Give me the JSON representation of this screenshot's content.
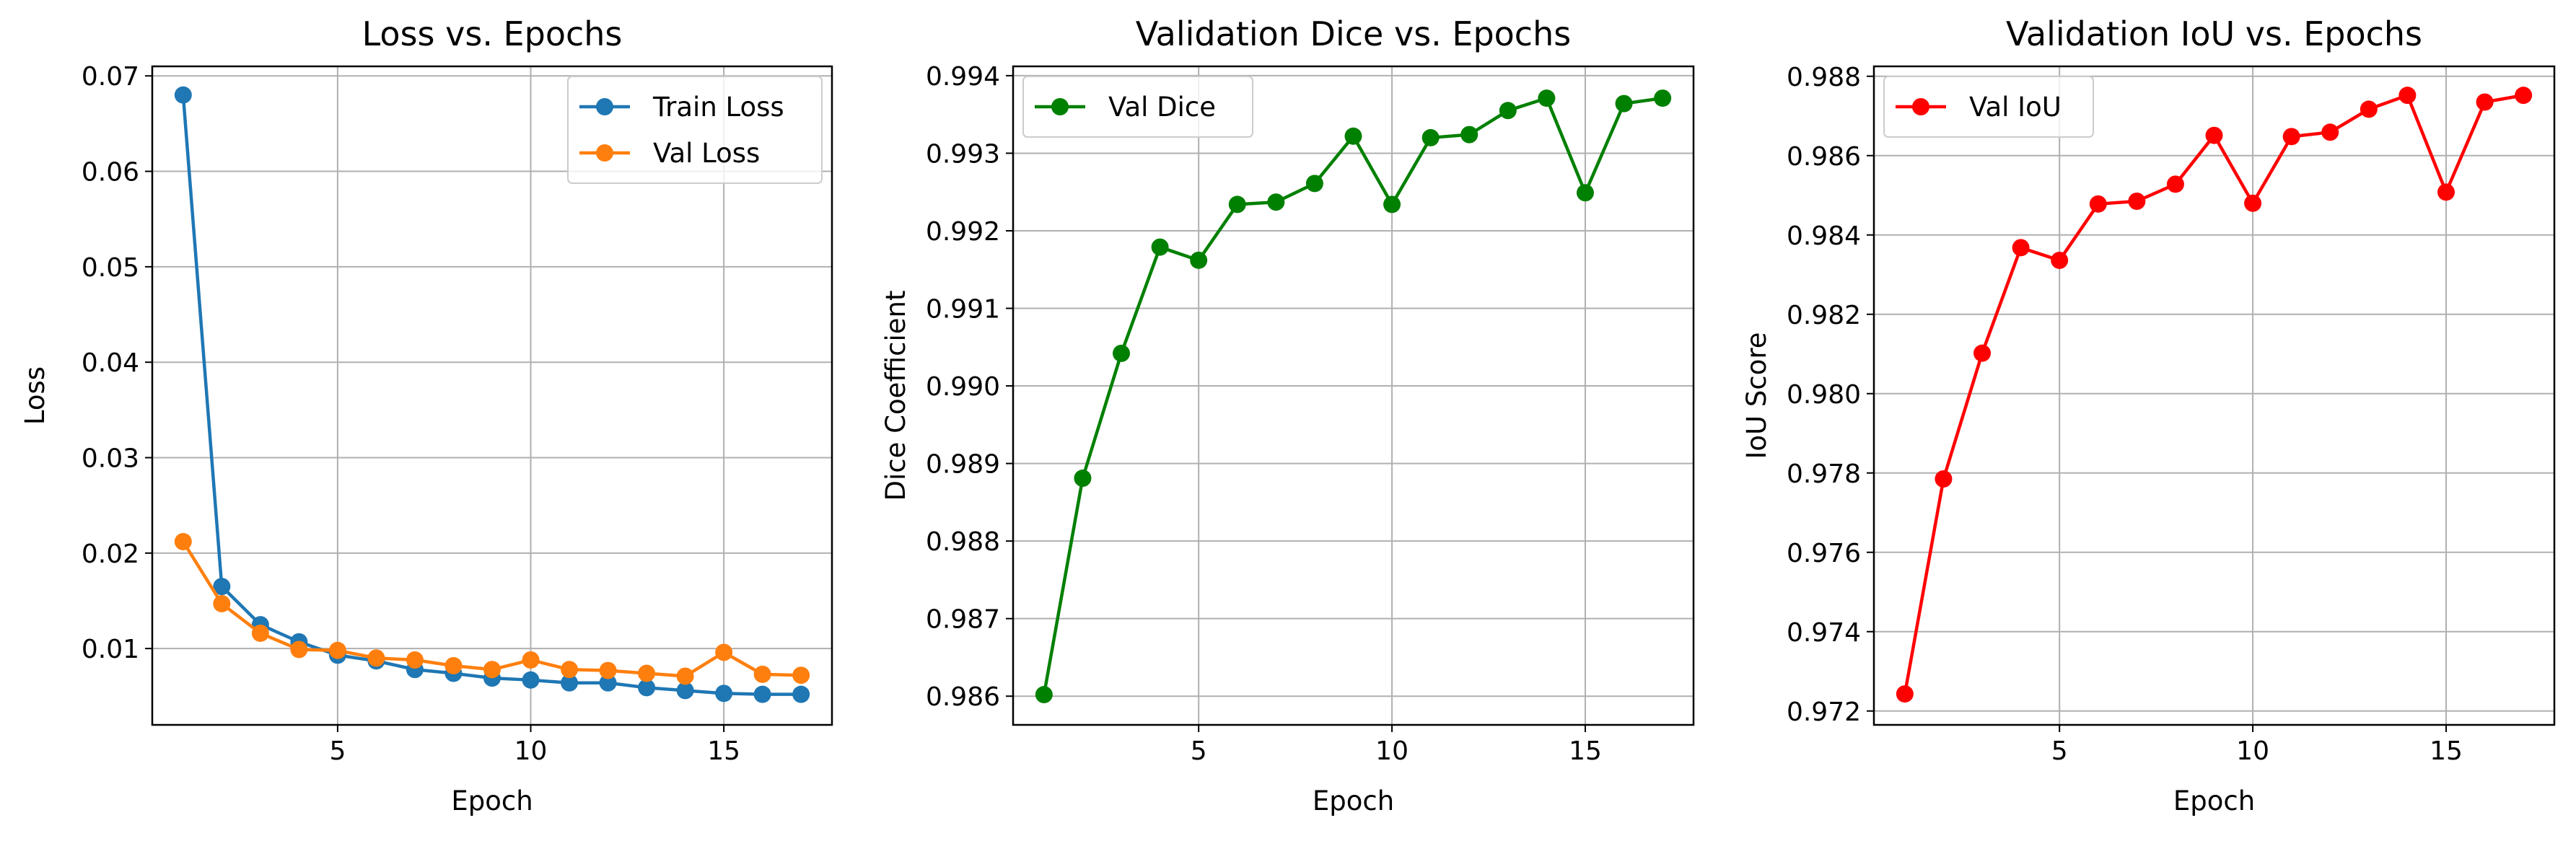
{
  "chart_data": [
    {
      "type": "line",
      "title": "Loss vs. Epochs",
      "xlabel": "Epoch",
      "ylabel": "Loss",
      "xlim": [
        0.2,
        17.8
      ],
      "ylim": [
        0.002,
        0.071
      ],
      "xticks": [
        5,
        10,
        15
      ],
      "yticks": [
        0.01,
        0.02,
        0.03,
        0.04,
        0.05,
        0.06,
        0.07
      ],
      "ytick_decimals": 2,
      "grid": true,
      "legend": "top-right",
      "x": [
        1,
        2,
        3,
        4,
        5,
        6,
        7,
        8,
        9,
        10,
        11,
        12,
        13,
        14,
        15,
        16,
        17
      ],
      "series": [
        {
          "name": "Train Loss",
          "color": "#1f77b4",
          "values": [
            0.068,
            0.0165,
            0.0125,
            0.0107,
            0.0093,
            0.0087,
            0.0078,
            0.0074,
            0.0069,
            0.0067,
            0.0064,
            0.0064,
            0.0059,
            0.0056,
            0.0053,
            0.0052,
            0.0052
          ]
        },
        {
          "name": "Val Loss",
          "color": "#ff7f0e",
          "values": [
            0.0212,
            0.0147,
            0.0116,
            0.0099,
            0.0098,
            0.009,
            0.0088,
            0.0082,
            0.0078,
            0.0088,
            0.0078,
            0.0077,
            0.0074,
            0.0071,
            0.0096,
            0.0073,
            0.0072
          ]
        }
      ]
    },
    {
      "type": "line",
      "title": "Validation Dice vs. Epochs",
      "xlabel": "Epoch",
      "ylabel": "Dice Coefficient",
      "xlim": [
        0.2,
        17.8
      ],
      "ylim": [
        0.98563,
        0.99412
      ],
      "xticks": [
        5,
        10,
        15
      ],
      "yticks": [
        0.986,
        0.987,
        0.988,
        0.989,
        0.99,
        0.991,
        0.992,
        0.993,
        0.994
      ],
      "ytick_decimals": 3,
      "grid": true,
      "legend": "top-left",
      "x": [
        1,
        2,
        3,
        4,
        5,
        6,
        7,
        8,
        9,
        10,
        11,
        12,
        13,
        14,
        15,
        16,
        17
      ],
      "series": [
        {
          "name": "Val Dice",
          "color": "#008000",
          "values": [
            0.98602,
            0.98881,
            0.99042,
            0.99179,
            0.99162,
            0.99234,
            0.99237,
            0.99261,
            0.99322,
            0.99234,
            0.9932,
            0.99324,
            0.99355,
            0.99371,
            0.99249,
            0.99364,
            0.99371
          ]
        }
      ]
    },
    {
      "type": "line",
      "title": "Validation IoU vs. Epochs",
      "xlabel": "Epoch",
      "ylabel": "IoU Score",
      "xlim": [
        0.2,
        17.8
      ],
      "ylim": [
        0.97165,
        0.98825
      ],
      "xticks": [
        5,
        10,
        15
      ],
      "yticks": [
        0.972,
        0.974,
        0.976,
        0.978,
        0.98,
        0.982,
        0.984,
        0.986,
        0.988
      ],
      "ytick_decimals": 3,
      "grid": true,
      "legend": "top-left",
      "x": [
        1,
        2,
        3,
        4,
        5,
        6,
        7,
        8,
        9,
        10,
        11,
        12,
        13,
        14,
        15,
        16,
        17
      ],
      "series": [
        {
          "name": "Val IoU",
          "color": "#ff0000",
          "values": [
            0.97243,
            0.97785,
            0.98102,
            0.98368,
            0.98336,
            0.98478,
            0.98485,
            0.98528,
            0.98651,
            0.9848,
            0.98648,
            0.98659,
            0.98717,
            0.98752,
            0.98508,
            0.98735,
            0.98752
          ]
        }
      ]
    }
  ]
}
